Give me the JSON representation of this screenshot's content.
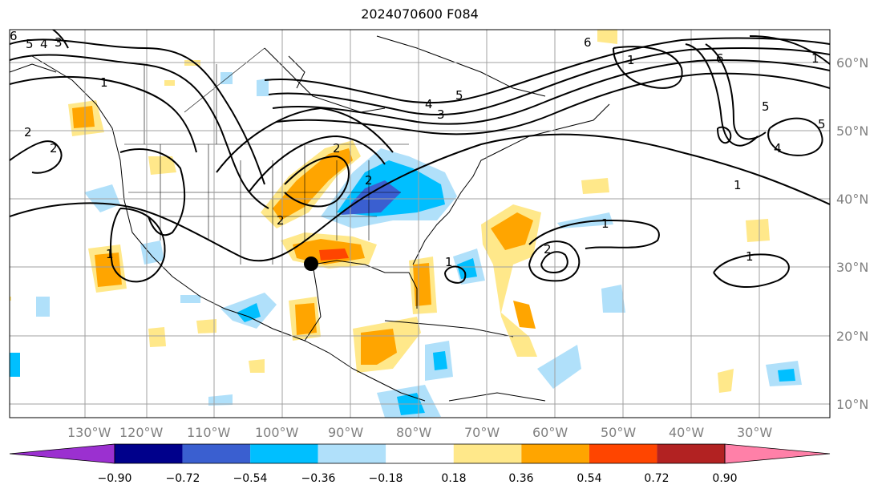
{
  "title": "2024070600 F084",
  "map": {
    "lon_labels": [
      "130°W",
      "120°W",
      "110°W",
      "100°W",
      "90°W",
      "80°W",
      "70°W",
      "60°W",
      "50°W",
      "40°W",
      "30°W"
    ],
    "lat_labels": [
      "60°N",
      "50°N",
      "40°N",
      "30°N",
      "20°N",
      "10°N"
    ],
    "contour_labels": [
      "6",
      "5",
      "4",
      "3",
      "1",
      "2",
      "2",
      "2",
      "2",
      "2",
      "4",
      "3",
      "5",
      "6",
      "1",
      "6",
      "5",
      "4",
      "5",
      "2",
      "1",
      "1",
      "1",
      "1",
      "1",
      "1"
    ],
    "storm_marker": "filled-circle"
  },
  "colorbar": {
    "ticks": [
      "−0.90",
      "−0.72",
      "−0.54",
      "−0.36",
      "−0.18",
      "0.18",
      "0.36",
      "0.54",
      "0.72",
      "0.90"
    ],
    "colors": [
      "#9b30d0",
      "#00008b",
      "#3a5fd0",
      "#00bfff",
      "#b0e0fa",
      "#ffffff",
      "#ffe88a",
      "#ffa500",
      "#ff4500",
      "#b22222",
      "#ff80a8"
    ]
  }
}
